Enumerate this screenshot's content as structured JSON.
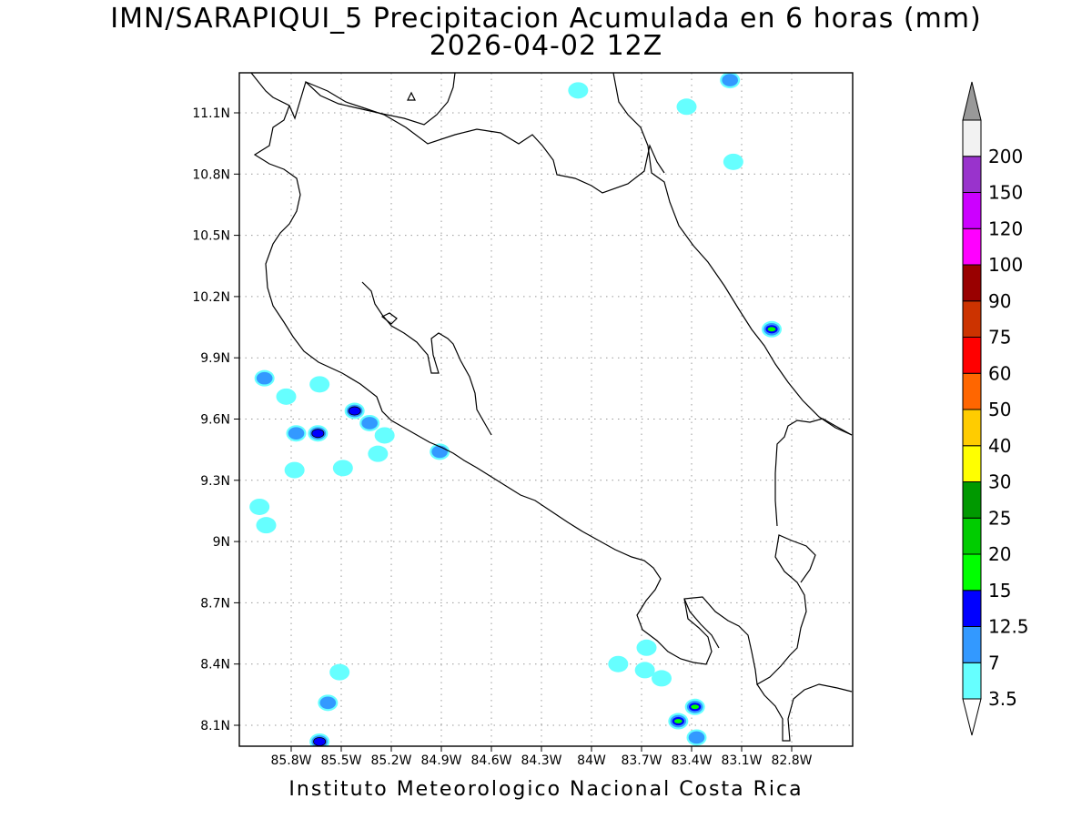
{
  "title": {
    "line1": "IMN/SARAPIQUI_5 Precipitacion Acumulada en 6 horas (mm)",
    "line2": "2026-04-02 12Z"
  },
  "footer": {
    "credit": "Instituto Meteorologico Nacional Costa Rica"
  },
  "map": {
    "lat_range": [
      8.0,
      11.3
    ],
    "lon_range": [
      -86.0,
      -83.0
    ],
    "lat_ticks": [
      {
        "value": 11.1,
        "label": "11.1N"
      },
      {
        "value": 10.8,
        "label": "10.8N"
      },
      {
        "value": 10.5,
        "label": "10.5N"
      },
      {
        "value": 10.2,
        "label": "10.2N"
      },
      {
        "value": 9.9,
        "label": "9.9N"
      },
      {
        "value": 9.6,
        "label": "9.6N"
      },
      {
        "value": 9.3,
        "label": "9.3N"
      },
      {
        "value": 9.0,
        "label": "9N"
      },
      {
        "value": 8.7,
        "label": "8.7N"
      },
      {
        "value": 8.4,
        "label": "8.4N"
      },
      {
        "value": 8.1,
        "label": "8.1N"
      }
    ],
    "lon_ticks": [
      {
        "value": -85.8,
        "label": "85.8W"
      },
      {
        "value": -85.5,
        "label": "85.5W"
      },
      {
        "value": -85.2,
        "label": "85.2W"
      },
      {
        "value": -84.9,
        "label": "84.9W"
      },
      {
        "value": -84.6,
        "label": "84.6W"
      },
      {
        "value": -84.3,
        "label": "84.3W"
      },
      {
        "value": -84.0,
        "label": "84W"
      },
      {
        "value": -83.7,
        "label": "83.7W"
      },
      {
        "value": -83.4,
        "label": "83.4W"
      },
      {
        "value": -83.1,
        "label": "83.1W"
      },
      {
        "value": -82.8,
        "label": "82.8W"
      }
    ],
    "grid": true,
    "coastline_color": "#000000",
    "precip_cells": [
      {
        "lon": -85.64,
        "lat": 9.53,
        "level": "7",
        "center_level": "12.5"
      },
      {
        "lon": -85.77,
        "lat": 9.53,
        "level": "7"
      },
      {
        "lon": -85.42,
        "lat": 9.64,
        "level": "7",
        "center_level": "12.5"
      },
      {
        "lon": -85.33,
        "lat": 9.58,
        "level": "7"
      },
      {
        "lon": -84.91,
        "lat": 9.44,
        "level": "7"
      },
      {
        "lon": -85.24,
        "lat": 9.52,
        "level": "3.5"
      },
      {
        "lon": -85.96,
        "lat": 9.8,
        "level": "7"
      },
      {
        "lon": -85.63,
        "lat": 9.77,
        "level": "3.5"
      },
      {
        "lon": -85.83,
        "lat": 9.71,
        "level": "3.5"
      },
      {
        "lon": -85.49,
        "lat": 9.36,
        "level": "3.5"
      },
      {
        "lon": -85.28,
        "lat": 9.43,
        "level": "3.5"
      },
      {
        "lon": -85.78,
        "lat": 9.35,
        "level": "3.5"
      },
      {
        "lon": -85.99,
        "lat": 9.17,
        "level": "3.5"
      },
      {
        "lon": -85.95,
        "lat": 9.08,
        "level": "3.5"
      },
      {
        "lon": -85.58,
        "lat": 8.21,
        "level": "7"
      },
      {
        "lon": -85.63,
        "lat": 8.02,
        "level": "7",
        "center_level": "12.5"
      },
      {
        "lon": -85.51,
        "lat": 8.36,
        "level": "3.5"
      },
      {
        "lon": -83.48,
        "lat": 8.12,
        "level": "7",
        "center_level": "25"
      },
      {
        "lon": -83.38,
        "lat": 8.19,
        "level": "7",
        "center_level": "20"
      },
      {
        "lon": -83.37,
        "lat": 8.04,
        "level": "7"
      },
      {
        "lon": -82.92,
        "lat": 10.04,
        "level": "7",
        "center_level": "20"
      },
      {
        "lon": -83.17,
        "lat": 11.26,
        "level": "7"
      },
      {
        "lon": -84.08,
        "lat": 11.21,
        "level": "3.5"
      },
      {
        "lon": -83.43,
        "lat": 11.13,
        "level": "3.5"
      },
      {
        "lon": -83.15,
        "lat": 10.86,
        "level": "3.5"
      },
      {
        "lon": -83.67,
        "lat": 8.48,
        "level": "3.5"
      },
      {
        "lon": -83.68,
        "lat": 8.37,
        "level": "3.5"
      },
      {
        "lon": -83.84,
        "lat": 8.4,
        "level": "3.5"
      },
      {
        "lon": -83.58,
        "lat": 8.33,
        "level": "3.5"
      }
    ]
  },
  "colorbar": {
    "levels": [
      {
        "label": "3.5",
        "color": "#66ffff"
      },
      {
        "label": "7",
        "color": "#3399ff"
      },
      {
        "label": "12.5",
        "color": "#0000ff"
      },
      {
        "label": "15",
        "color": "#00ff00"
      },
      {
        "label": "20",
        "color": "#00cc00"
      },
      {
        "label": "25",
        "color": "#009900"
      },
      {
        "label": "30",
        "color": "#ffff00"
      },
      {
        "label": "40",
        "color": "#ffcc00"
      },
      {
        "label": "50",
        "color": "#ff6600"
      },
      {
        "label": "60",
        "color": "#ff0000"
      },
      {
        "label": "75",
        "color": "#cc3300"
      },
      {
        "label": "90",
        "color": "#990000"
      },
      {
        "label": "100",
        "color": "#ff00ff"
      },
      {
        "label": "120",
        "color": "#cc00ff"
      },
      {
        "label": "150",
        "color": "#9933cc"
      },
      {
        "label": "200",
        "color": "#f2f2f2"
      }
    ],
    "below_color": "#ffffff",
    "above_color": "#999999"
  }
}
